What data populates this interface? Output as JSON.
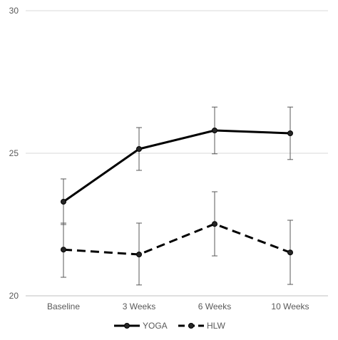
{
  "chart_data": {
    "type": "line",
    "title": "",
    "xlabel": "",
    "ylabel": "",
    "categories": [
      "Baseline",
      "3 Weeks",
      "6 Weeks",
      "10 Weeks"
    ],
    "ylim": [
      20,
      30
    ],
    "yticks": [
      20,
      25,
      30
    ],
    "grid": true,
    "legend_position": "bottom",
    "series": [
      {
        "name": "YOGA",
        "values": [
          23.3,
          25.15,
          25.8,
          25.7
        ],
        "error_low": [
          22.5,
          24.4,
          24.98,
          24.78
        ],
        "error_high": [
          24.1,
          25.9,
          26.62,
          26.62
        ],
        "line_style": "solid",
        "color": "#000000"
      },
      {
        "name": "HLW",
        "values": [
          21.62,
          21.45,
          22.52,
          21.52
        ],
        "error_low": [
          20.65,
          20.38,
          21.4,
          20.4
        ],
        "error_high": [
          22.55,
          22.55,
          23.65,
          22.65
        ],
        "line_style": "dashed",
        "color": "#000000"
      }
    ]
  }
}
